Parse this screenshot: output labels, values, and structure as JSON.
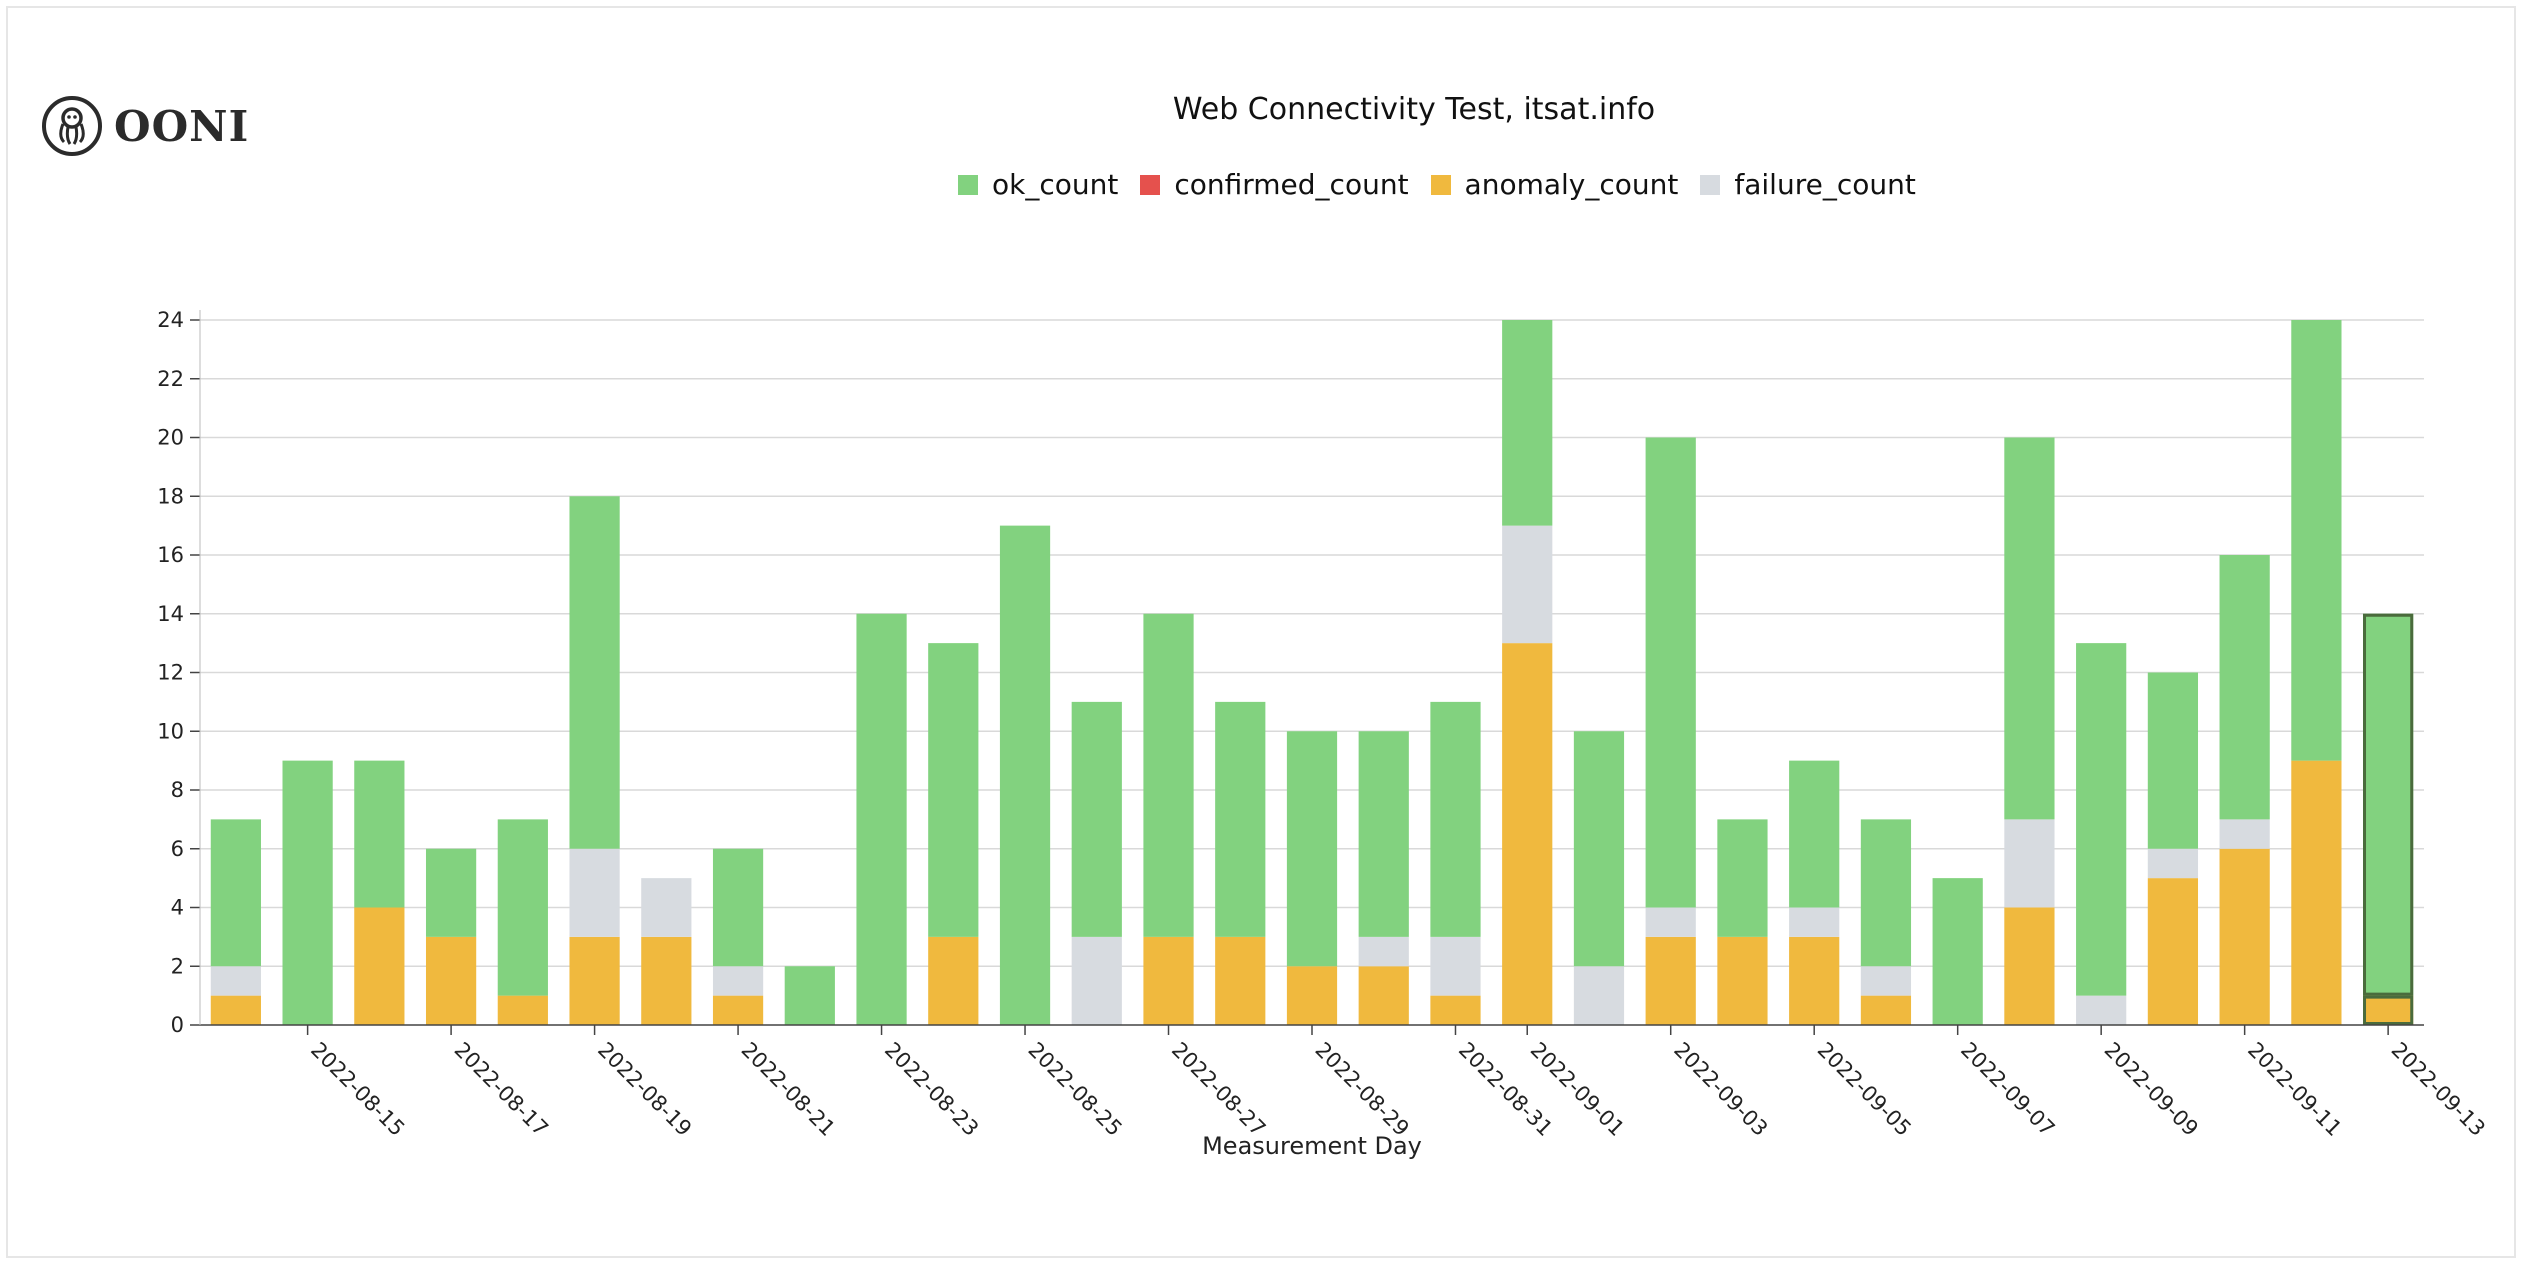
{
  "brand": {
    "name": "OONI",
    "icon": "ooni-octopus-icon"
  },
  "chart_data": {
    "type": "bar",
    "stacked": true,
    "title": "Web Connectivity Test, itsat.info",
    "xlabel": "Measurement Day",
    "ylabel": "",
    "ylim": [
      0,
      24
    ],
    "yticks": [
      0,
      2,
      4,
      6,
      8,
      10,
      12,
      14,
      16,
      18,
      20,
      22,
      24
    ],
    "grid": true,
    "legend_position": "top-center",
    "categories": [
      "2022-08-14",
      "2022-08-15",
      "2022-08-16",
      "2022-08-17",
      "2022-08-18",
      "2022-08-19",
      "2022-08-20",
      "2022-08-21",
      "2022-08-22",
      "2022-08-23",
      "2022-08-24",
      "2022-08-25",
      "2022-08-26",
      "2022-08-27",
      "2022-08-28",
      "2022-08-29",
      "2022-08-30",
      "2022-08-31",
      "2022-09-01",
      "2022-09-02",
      "2022-09-03",
      "2022-09-04",
      "2022-09-05",
      "2022-09-06",
      "2022-09-07",
      "2022-09-08",
      "2022-09-09",
      "2022-09-10",
      "2022-09-11",
      "2022-09-12",
      "2022-09-13"
    ],
    "tick_labels": [
      "2022-08-15",
      "2022-08-17",
      "2022-08-19",
      "2022-08-21",
      "2022-08-23",
      "2022-08-25",
      "2022-08-27",
      "2022-08-29",
      "2022-08-31",
      "2022-09-01",
      "2022-09-03",
      "2022-09-05",
      "2022-09-07",
      "2022-09-09",
      "2022-09-11",
      "2022-09-13"
    ],
    "series": [
      {
        "name": "anomaly_count",
        "color": "#f0b93e",
        "values": [
          1,
          0,
          4,
          3,
          1,
          3,
          3,
          1,
          0,
          0,
          3,
          0,
          0,
          3,
          3,
          2,
          2,
          1,
          13,
          0,
          3,
          3,
          3,
          1,
          0,
          4,
          0,
          5,
          6,
          9,
          1
        ]
      },
      {
        "name": "confirmed_count",
        "color": "#e5514d",
        "values": [
          0,
          0,
          0,
          0,
          0,
          0,
          0,
          0,
          0,
          0,
          0,
          0,
          0,
          0,
          0,
          0,
          0,
          0,
          0,
          0,
          0,
          0,
          0,
          0,
          0,
          0,
          0,
          0,
          0,
          0,
          0
        ]
      },
      {
        "name": "failure_count",
        "color": "#d7dbe0",
        "values": [
          1,
          0,
          0,
          0,
          0,
          3,
          2,
          1,
          0,
          0,
          0,
          0,
          3,
          0,
          0,
          0,
          1,
          2,
          4,
          2,
          1,
          0,
          1,
          1,
          0,
          3,
          1,
          1,
          1,
          0,
          0
        ]
      },
      {
        "name": "ok_count",
        "color": "#82d27f",
        "values": [
          5,
          9,
          5,
          3,
          6,
          12,
          0,
          4,
          2,
          14,
          10,
          17,
          8,
          11,
          8,
          8,
          7,
          8,
          7,
          8,
          16,
          4,
          5,
          5,
          5,
          13,
          12,
          6,
          9,
          15,
          13
        ]
      }
    ],
    "legend_order": [
      "ok_count",
      "confirmed_count",
      "anomaly_count",
      "failure_count"
    ],
    "highlighted_category": "2022-09-13"
  }
}
